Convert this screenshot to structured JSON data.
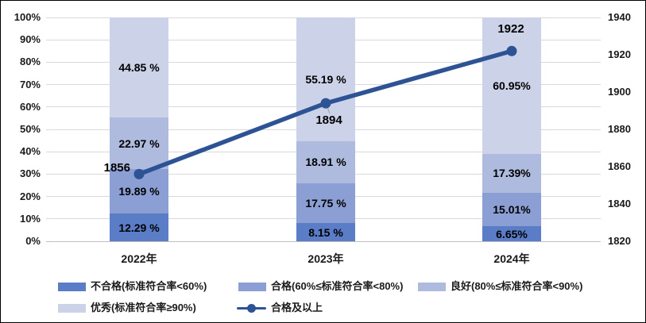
{
  "chart_data": {
    "type": "combo",
    "subtype": "stacked-100-percent-bar-with-line",
    "categories": [
      "2022年",
      "2023年",
      "2024年"
    ],
    "bar_series": [
      {
        "name": "不合格(标准符合率<60%)",
        "color": "#5b7dc7",
        "values": [
          12.29,
          8.15,
          6.65
        ],
        "labels": [
          "12.29 %",
          "8.15 %",
          "6.65%"
        ]
      },
      {
        "name": "合格(60%≤标准符合率<80%)",
        "color": "#8c9fd5",
        "values": [
          19.89,
          17.75,
          15.01
        ],
        "labels": [
          "19.89 %",
          "17.75 %",
          "15.01%"
        ]
      },
      {
        "name": "良好(80%≤标准符合率<90%)",
        "color": "#aebade",
        "values": [
          22.97,
          18.91,
          17.39
        ],
        "labels": [
          "22.97 %",
          "18.91 %",
          "17.39%"
        ]
      },
      {
        "name": "优秀(标准符合率≥90%)",
        "color": "#ccd3e9",
        "values": [
          44.85,
          55.19,
          60.95
        ],
        "labels": [
          "44.85 %",
          "55.19 %",
          "60.95%"
        ]
      }
    ],
    "line_series": {
      "name": "合格及以上",
      "color": "#2e5394",
      "axis": "right",
      "values": [
        1856,
        1894,
        1922
      ],
      "labels": [
        "1856",
        "1894",
        "1922"
      ],
      "label_placement": [
        "left",
        "below",
        "above"
      ],
      "leader_line_color": "#a6a6a6"
    },
    "left_axis": {
      "min": 0,
      "max": 100,
      "tick_labels": [
        "100%",
        "90%",
        "80%",
        "70%",
        "60%",
        "50%",
        "40%",
        "30%",
        "20%",
        "10%",
        "0%"
      ]
    },
    "right_axis": {
      "min": 1820,
      "max": 1940,
      "tick_labels": [
        "1940",
        "1920",
        "1900",
        "1880",
        "1860",
        "1840",
        "1820"
      ]
    },
    "grid": true,
    "gridline_color": "#d9d9d9",
    "legend_position": "bottom",
    "legend_rows": [
      [
        0,
        1,
        2
      ],
      [
        3,
        "line"
      ]
    ]
  }
}
